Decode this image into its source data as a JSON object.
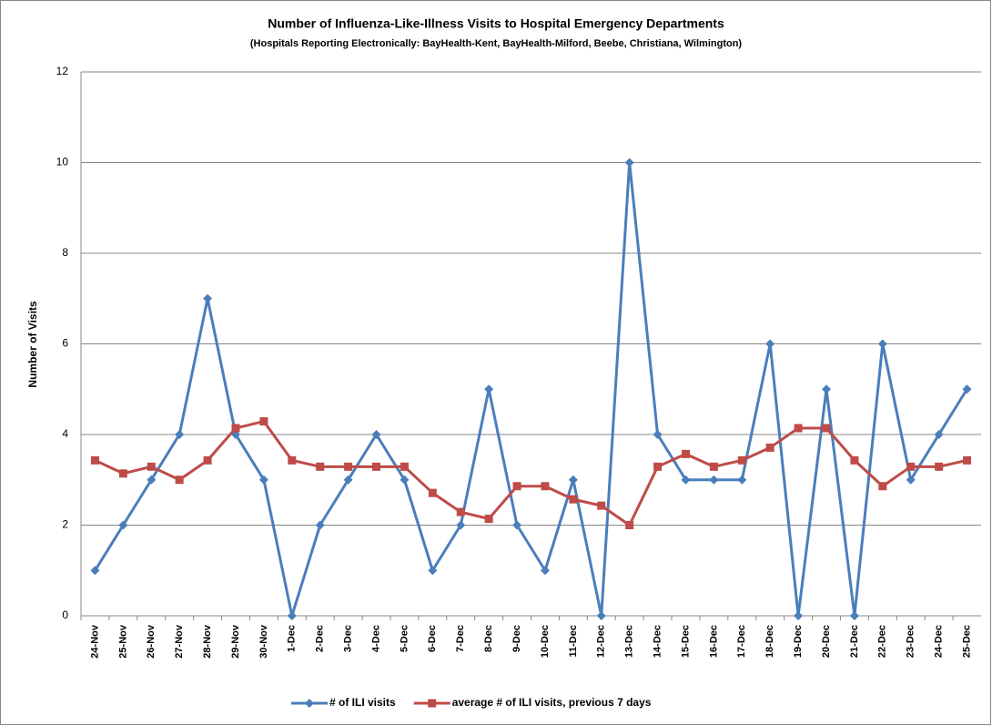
{
  "chart_data": {
    "type": "line",
    "title": "Number of Influenza-Like-Illness Visits to Hospital Emergency Departments",
    "subtitle": "(Hospitals Reporting Electronically:  BayHealth-Kent, BayHealth-Milford,  Beebe, Christiana,  Wilmington)",
    "y_label": "Number of Visits",
    "categories": [
      "24-Nov",
      "25-Nov",
      "26-Nov",
      "27-Nov",
      "28-Nov",
      "29-Nov",
      "30-Nov",
      "1-Dec",
      "2-Dec",
      "3-Dec",
      "4-Dec",
      "5-Dec",
      "6-Dec",
      "7-Dec",
      "8-Dec",
      "9-Dec",
      "10-Dec",
      "11-Dec",
      "12-Dec",
      "13-Dec",
      "14-Dec",
      "15-Dec",
      "16-Dec",
      "17-Dec",
      "18-Dec",
      "19-Dec",
      "20-Dec",
      "21-Dec",
      "22-Dec",
      "23-Dec",
      "24-Dec",
      "25-Dec"
    ],
    "series": [
      {
        "name": "# of ILI visits",
        "color": "#4a7ebb",
        "marker": "diamond",
        "values": [
          1,
          2,
          3,
          4,
          7,
          4,
          3,
          0,
          2,
          3,
          4,
          3,
          1,
          2,
          5,
          2,
          1,
          3,
          0,
          10,
          4,
          3,
          3,
          3,
          6,
          0,
          5,
          0,
          6,
          3,
          4,
          5
        ]
      },
      {
        "name": "average # of ILI visits, previous 7 days",
        "color": "#be4b48",
        "marker": "square",
        "values": [
          3.43,
          3.14,
          3.29,
          3.0,
          3.43,
          4.14,
          4.29,
          3.43,
          3.29,
          3.29,
          3.29,
          3.29,
          2.71,
          2.29,
          2.14,
          2.86,
          2.86,
          2.57,
          2.43,
          2.0,
          3.29,
          3.57,
          3.29,
          3.43,
          3.71,
          4.14,
          4.14,
          3.43,
          2.86,
          3.29,
          3.29,
          3.43
        ]
      }
    ],
    "ylim": [
      0,
      12
    ],
    "yticks": [
      0,
      2,
      4,
      6,
      8,
      10,
      12
    ],
    "grid": true,
    "legend": "bottom"
  }
}
